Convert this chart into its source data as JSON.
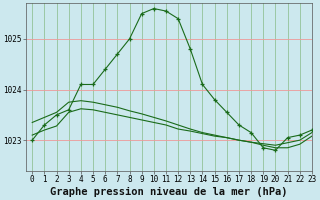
{
  "title": "Graphe pression niveau de la mer (hPa)",
  "background_color": "#cce8ee",
  "plot_bg_color": "#cce8ee",
  "grid_color_h": "#ee9999",
  "grid_color_v": "#88bb88",
  "line_color": "#1a6b1a",
  "ylim": [
    1022.4,
    1025.7
  ],
  "xlim": [
    -0.5,
    23
  ],
  "yticks": [
    1023,
    1024,
    1025
  ],
  "xticks": [
    0,
    1,
    2,
    3,
    4,
    5,
    6,
    7,
    8,
    9,
    10,
    11,
    12,
    13,
    14,
    15,
    16,
    17,
    18,
    19,
    20,
    21,
    22,
    23
  ],
  "series": [
    {
      "x": [
        0,
        1,
        2,
        3,
        4,
        5,
        6,
        7,
        8,
        9,
        10,
        11,
        12,
        13,
        14,
        15,
        16,
        17,
        18,
        19,
        20,
        21,
        22,
        23
      ],
      "y": [
        1023.0,
        1023.3,
        1023.5,
        1023.6,
        1024.1,
        1024.1,
        1024.4,
        1024.7,
        1025.0,
        1025.5,
        1025.6,
        1025.55,
        1025.4,
        1024.8,
        1024.1,
        1023.8,
        1023.55,
        1023.3,
        1023.15,
        1022.85,
        1022.8,
        1023.05,
        1023.1,
        1023.2
      ],
      "marker": "+"
    },
    {
      "x": [
        0,
        1,
        2,
        3,
        4,
        5,
        6,
        7,
        8,
        9,
        10,
        11,
        12,
        13,
        14,
        15,
        16,
        17,
        18,
        19,
        20,
        21,
        22,
        23
      ],
      "y": [
        1023.35,
        1023.45,
        1023.55,
        1023.75,
        1023.78,
        1023.75,
        1023.7,
        1023.65,
        1023.58,
        1023.52,
        1023.45,
        1023.38,
        1023.3,
        1023.22,
        1023.15,
        1023.1,
        1023.05,
        1023.0,
        1022.96,
        1022.93,
        1022.9,
        1022.95,
        1023.0,
        1023.15
      ],
      "marker": null
    },
    {
      "x": [
        0,
        1,
        2,
        3,
        4,
        5,
        6,
        7,
        8,
        9,
        10,
        11,
        12,
        13,
        14,
        15,
        16,
        17,
        18,
        19,
        20,
        21,
        22,
        23
      ],
      "y": [
        1023.1,
        1023.2,
        1023.28,
        1023.55,
        1023.62,
        1023.6,
        1023.55,
        1023.5,
        1023.45,
        1023.4,
        1023.35,
        1023.3,
        1023.22,
        1023.18,
        1023.13,
        1023.08,
        1023.05,
        1023.0,
        1022.96,
        1022.9,
        1022.85,
        1022.85,
        1022.92,
        1023.08
      ],
      "marker": null
    }
  ],
  "title_fontsize": 7.5,
  "tick_fontsize": 5.5
}
